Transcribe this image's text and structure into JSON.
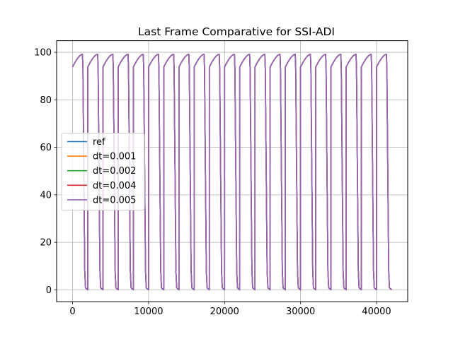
{
  "chart_data": {
    "type": "line",
    "title": "Last Frame Comparative for SSI-ADI",
    "xlabel": "",
    "ylabel": "",
    "xlim": [
      -2100,
      44100
    ],
    "ylim": [
      -5,
      104.9
    ],
    "xticks": [
      0,
      10000,
      20000,
      30000,
      40000
    ],
    "yticks": [
      0,
      20,
      40,
      60,
      80,
      100
    ],
    "grid": true,
    "legend_position": "center-left",
    "cycle": {
      "period": 2000,
      "count": 21,
      "rise_start": 93.8,
      "peak": 99.2,
      "rise_duration": 1300,
      "fall_duration": 400,
      "bottom": 0.0,
      "tail_end_x": 42000
    },
    "series": [
      {
        "name": "ref",
        "color": "#1f77b4"
      },
      {
        "name": "dt=0.001",
        "color": "#ff7f0e"
      },
      {
        "name": "dt=0.002",
        "color": "#2ca02c"
      },
      {
        "name": "dt=0.004",
        "color": "#d62728"
      },
      {
        "name": "dt=0.005",
        "color": "#9467bd"
      }
    ]
  }
}
